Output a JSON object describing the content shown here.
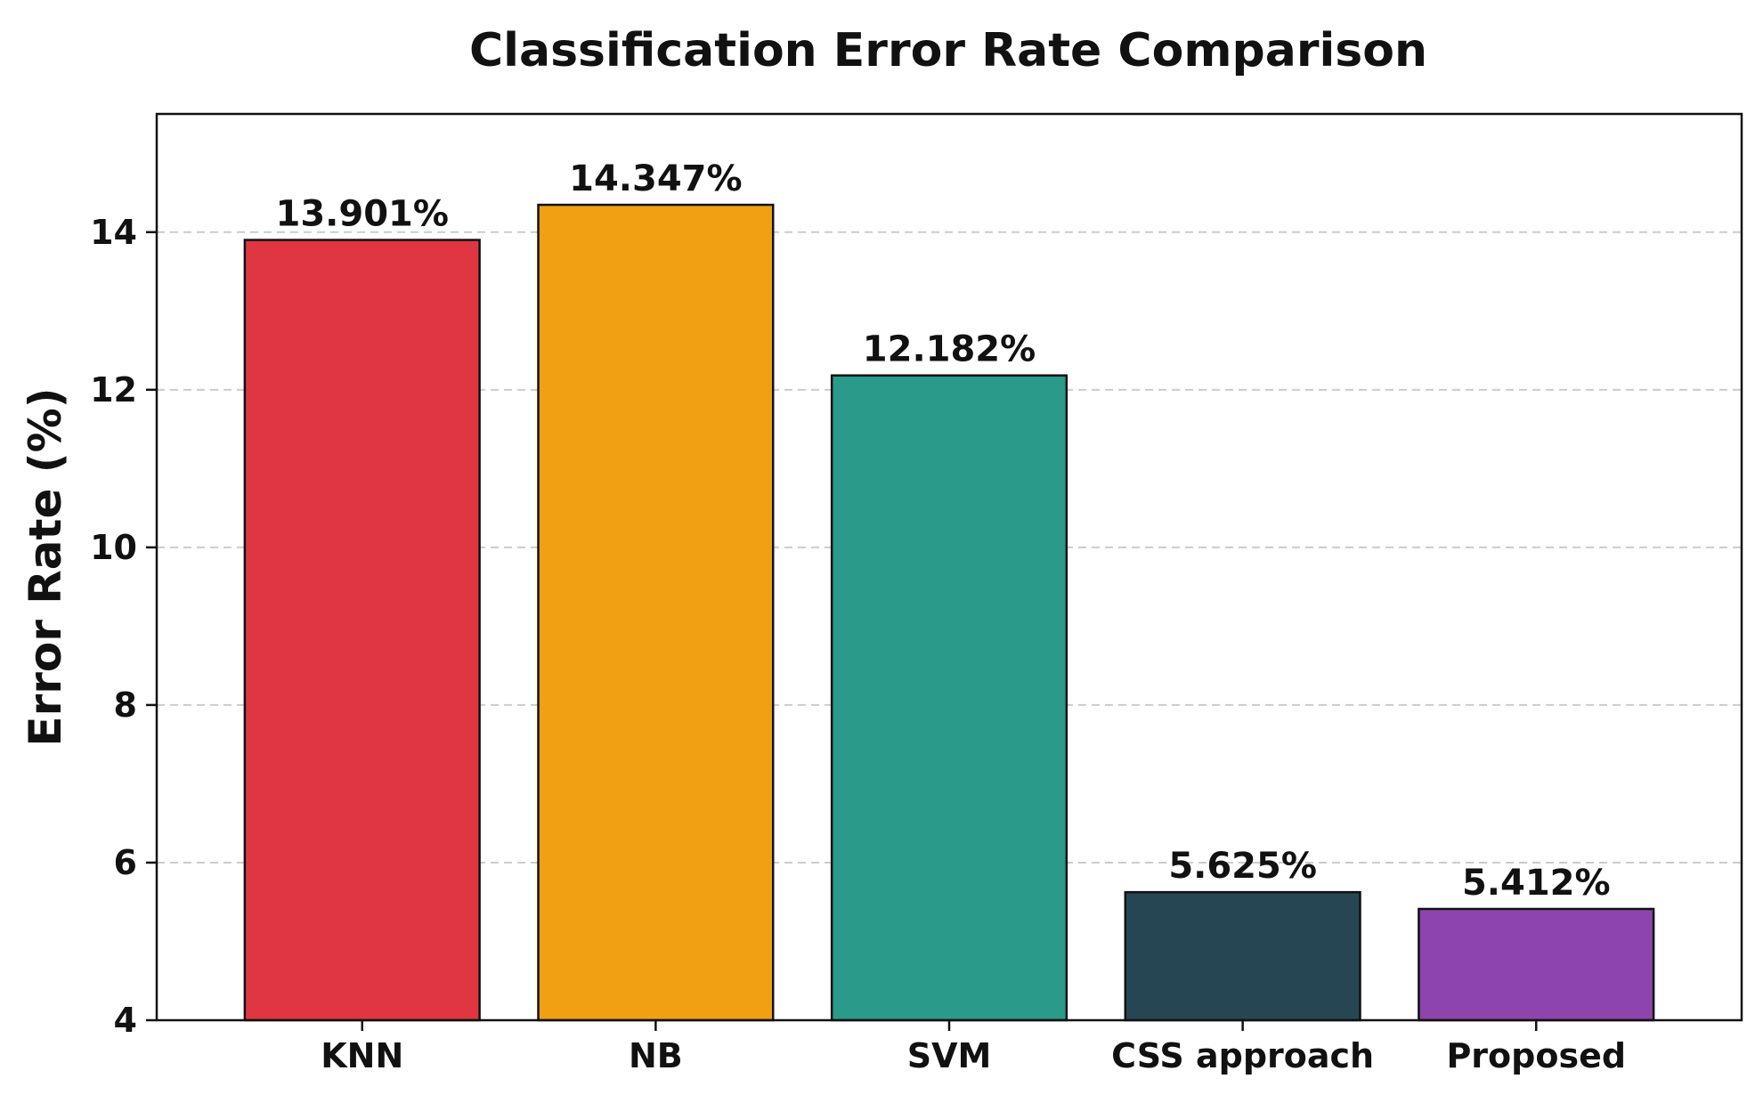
{
  "chart_data": {
    "type": "bar",
    "title": "Classification Error Rate Comparison",
    "xlabel": "",
    "ylabel": "Error Rate (%)",
    "categories": [
      "KNN",
      "NB",
      "SVM",
      "CSS approach",
      "Proposed"
    ],
    "values": [
      13.901,
      14.347,
      12.182,
      5.625,
      5.412
    ],
    "data_labels": [
      "13.901%",
      "14.347%",
      "12.182%",
      "5.625%",
      "5.412%"
    ],
    "colors": [
      "#e03642",
      "#f0a012",
      "#2a9a8a",
      "#264653",
      "#8e44ad"
    ],
    "edge_color": "#111111",
    "ylim": [
      4,
      15.5
    ],
    "yticks": [
      4,
      6,
      8,
      10,
      12,
      14
    ],
    "grid": true,
    "grid_axis": "y",
    "grid_style": "dashed",
    "grid_color": "#cccccc",
    "legend": false
  }
}
